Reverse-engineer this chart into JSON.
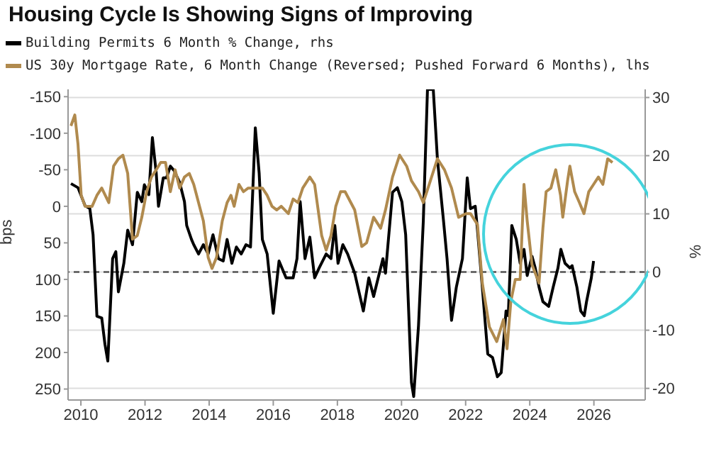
{
  "chart_data": {
    "type": "line",
    "title": "Housing Cycle Is Showing Signs of Improving",
    "ylabel": "bps",
    "y2label": "%",
    "legend": "top",
    "grid": "y",
    "xlim": [
      2009.6,
      2027.6
    ],
    "xticks": [
      2010,
      2012,
      2014,
      2016,
      2018,
      2020,
      2022,
      2024,
      2026
    ],
    "ylim": [
      265,
      -160
    ],
    "yticks": [
      -150,
      -100,
      -50,
      0,
      50,
      100,
      150,
      200,
      250
    ],
    "y2lim": [
      -22,
      31.4
    ],
    "y2ticks": [
      -20,
      -10,
      0,
      10,
      20,
      30
    ],
    "ref_lines": [
      {
        "axis": "y2",
        "value": 0,
        "color": "#555555",
        "line_style": "dashed"
      }
    ],
    "series": [
      {
        "name": "Building Permits 6 Month % Change, rhs",
        "color": "#000000",
        "axis": "y2",
        "x": [
          2009.69,
          2009.91,
          2010.13,
          2010.28,
          2010.38,
          2010.5,
          2010.65,
          2010.75,
          2010.84,
          2010.99,
          2011.09,
          2011.17,
          2011.34,
          2011.46,
          2011.61,
          2011.76,
          2011.9,
          2011.98,
          2012.12,
          2012.23,
          2012.35,
          2012.42,
          2012.57,
          2012.67,
          2012.79,
          2012.91,
          2013.08,
          2013.23,
          2013.3,
          2013.45,
          2013.52,
          2013.67,
          2013.82,
          2013.97,
          2014.12,
          2014.29,
          2014.44,
          2014.56,
          2014.71,
          2014.85,
          2015.0,
          2015.15,
          2015.29,
          2015.44,
          2015.56,
          2015.66,
          2015.81,
          2016.0,
          2016.18,
          2016.4,
          2016.62,
          2016.74,
          2016.84,
          2016.99,
          2017.14,
          2017.29,
          2017.43,
          2017.65,
          2017.8,
          2017.92,
          2018.02,
          2018.17,
          2018.32,
          2018.54,
          2018.81,
          2018.98,
          2019.13,
          2019.42,
          2019.5,
          2019.72,
          2019.87,
          2020.01,
          2020.13,
          2020.31,
          2020.38,
          2020.53,
          2020.68,
          2020.81,
          2020.99,
          2021.12,
          2021.31,
          2021.42,
          2021.56,
          2021.71,
          2021.9,
          2022.05,
          2022.15,
          2022.3,
          2022.37,
          2022.52,
          2022.69,
          2022.84,
          2022.99,
          2023.11,
          2023.26,
          2023.33,
          2023.44,
          2023.58,
          2023.7,
          2023.82,
          2023.92,
          2024.07,
          2024.17,
          2024.29,
          2024.41,
          2024.59,
          2024.73,
          2024.88,
          2024.97,
          2025.1,
          2025.25,
          2025.32,
          2025.47,
          2025.59,
          2025.7,
          2025.77,
          2025.92,
          2025.99
        ],
        "values": [
          15.2,
          14.5,
          11.4,
          10.9,
          6.4,
          -7.6,
          -7.9,
          -12.4,
          -15.3,
          2.3,
          3.5,
          -3.4,
          1.5,
          7.2,
          4.7,
          13.7,
          12.1,
          15.0,
          13.3,
          23.1,
          17.0,
          11.3,
          16.2,
          16.2,
          18.2,
          17.4,
          15.4,
          12.1,
          8.0,
          5.6,
          4.7,
          3.1,
          4.7,
          3.1,
          6.4,
          2.3,
          1.9,
          5.6,
          1.5,
          4.3,
          3.1,
          4.7,
          4.3,
          24.8,
          17.0,
          5.6,
          3.1,
          -7.1,
          1.9,
          -1.0,
          -1.0,
          2.3,
          12.1,
          2.3,
          6.0,
          -1.0,
          0.7,
          3.1,
          2.3,
          8.0,
          1.5,
          4.7,
          3.1,
          -0.2,
          -6.7,
          -1.0,
          -4.2,
          2.3,
          -0.2,
          13.7,
          14.5,
          12.1,
          6.4,
          -19.0,
          -21.4,
          -9.2,
          8.8,
          31.4,
          31.4,
          19.4,
          8.8,
          2.3,
          -8.3,
          -2.6,
          2.3,
          16.2,
          10.9,
          11.3,
          7.2,
          -2.6,
          -14.1,
          -14.7,
          -18.0,
          -17.3,
          -6.7,
          -7.5,
          8.0,
          5.6,
          1.5,
          3.9,
          -0.6,
          2.7,
          0.7,
          -2.6,
          -5.1,
          -5.9,
          -2.6,
          0.7,
          3.9,
          1.5,
          0.7,
          1.1,
          -2.6,
          -6.7,
          -7.5,
          -5.1,
          -1.0,
          1.9
        ]
      },
      {
        "name": "US 30y Mortgage Rate, 6 Month Change (Reversed; Pushed Forward 6 Months), lhs",
        "color": "#b08a4e",
        "x": [
          2009.69,
          2009.81,
          2009.91,
          2010.01,
          2010.13,
          2010.35,
          2010.5,
          2010.65,
          2010.87,
          2011.02,
          2011.17,
          2011.31,
          2011.46,
          2011.61,
          2011.76,
          2011.9,
          2012.05,
          2012.2,
          2012.35,
          2012.49,
          2012.64,
          2012.79,
          2012.94,
          2013.08,
          2013.23,
          2013.38,
          2013.52,
          2013.67,
          2013.82,
          2013.97,
          2014.09,
          2014.23,
          2014.41,
          2014.56,
          2014.68,
          2014.78,
          2014.93,
          2015.07,
          2015.22,
          2015.44,
          2015.66,
          2015.81,
          2015.96,
          2016.11,
          2016.25,
          2016.47,
          2016.62,
          2016.77,
          2016.92,
          2017.14,
          2017.29,
          2017.51,
          2017.65,
          2017.8,
          2017.95,
          2018.1,
          2018.24,
          2018.42,
          2018.54,
          2018.76,
          2018.91,
          2019.13,
          2019.35,
          2019.5,
          2019.72,
          2019.94,
          2020.16,
          2020.31,
          2020.53,
          2020.68,
          2020.9,
          2021.12,
          2021.34,
          2021.56,
          2021.78,
          2022.01,
          2022.15,
          2022.37,
          2022.52,
          2022.74,
          2022.97,
          2023.18,
          2023.29,
          2023.41,
          2023.55,
          2023.7,
          2023.82,
          2023.92,
          2024.07,
          2024.29,
          2024.41,
          2024.51,
          2024.66,
          2024.81,
          2024.96,
          2025.03,
          2025.18,
          2025.25,
          2025.4,
          2025.55,
          2025.69,
          2025.84,
          2025.99,
          2026.14,
          2026.28,
          2026.43,
          2026.58
        ],
        "values": [
          -110,
          -125,
          -85,
          -15,
          0,
          0,
          -15,
          -25,
          -5,
          -55,
          -65,
          -70,
          -45,
          45,
          40,
          15,
          -20,
          -40,
          -50,
          -60,
          -60,
          -20,
          -50,
          -25,
          -40,
          -45,
          -30,
          -5,
          20,
          70,
          85,
          70,
          20,
          -5,
          -15,
          0,
          -30,
          -20,
          -25,
          -25,
          -25,
          -15,
          0,
          5,
          0,
          10,
          -10,
          -5,
          -25,
          -40,
          -30,
          40,
          60,
          40,
          0,
          -20,
          -20,
          -5,
          5,
          55,
          50,
          15,
          30,
          5,
          -40,
          -70,
          -55,
          -35,
          -20,
          -5,
          -35,
          -65,
          -50,
          -25,
          15,
          10,
          10,
          25,
          105,
          165,
          185,
          155,
          195,
          130,
          100,
          100,
          -30,
          20,
          80,
          105,
          30,
          -20,
          -25,
          -50,
          -15,
          15,
          -35,
          -55,
          -20,
          -5,
          10,
          -20,
          -30,
          -40,
          -30,
          -65,
          -60
        ]
      }
    ]
  }
}
